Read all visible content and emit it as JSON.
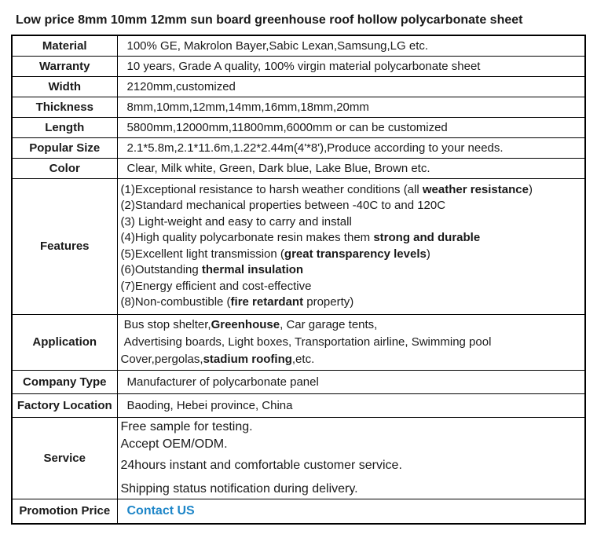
{
  "title": "Low price 8mm 10mm 12mm sun board greenhouse roof hollow polycarbonate sheet",
  "colors": {
    "link": "#1e86c8",
    "border": "#000000",
    "text": "#1a1a1a"
  },
  "table": {
    "rows": [
      {
        "kind": "simple",
        "label": "Material",
        "lines": [
          [
            {
              "t": "100% GE, Makrolon Bayer,Sabic Lexan,Samsung,LG etc."
            }
          ]
        ]
      },
      {
        "kind": "simple",
        "label": "Warranty",
        "lines": [
          [
            {
              "t": "10 years, Grade A quality, 100% virgin material polycarbonate sheet"
            }
          ]
        ]
      },
      {
        "kind": "simple",
        "label": "Width",
        "lines": [
          [
            {
              "t": "2120mm,customized"
            }
          ]
        ]
      },
      {
        "kind": "simple",
        "label": "Thickness",
        "lines": [
          [
            {
              "t": "8mm,10mm,12mm,14mm,16mm,18mm,20mm"
            }
          ]
        ]
      },
      {
        "kind": "simple",
        "label": "Length",
        "lines": [
          [
            {
              "t": "5800mm,12000mm,11800mm,6000mm or can be customized"
            }
          ]
        ]
      },
      {
        "kind": "simple",
        "label": "Popular Size",
        "lines": [
          [
            {
              "t": "2.1*5.8m,2.1*11.6m,1.22*2.44m(4'*8'),Produce according to your needs."
            }
          ]
        ]
      },
      {
        "kind": "simple",
        "label": "Color",
        "lines": [
          [
            {
              "t": "Clear, Milk white, Green, Dark blue, Lake Blue, Brown etc."
            }
          ]
        ]
      },
      {
        "kind": "features",
        "label": "Features",
        "lines": [
          [
            {
              "t": "(1)Exceptional resistance to harsh weather conditions (all "
            },
            {
              "t": "weather resistance",
              "b": true
            },
            {
              "t": ")"
            }
          ],
          [
            {
              "t": "(2)Standard mechanical properties between -40C to and 120C"
            }
          ],
          [
            {
              "t": "(3) Light-weight and easy to carry and install"
            }
          ],
          [
            {
              "t": "(4)High quality polycarbonate resin makes them "
            },
            {
              "t": "strong and durable",
              "b": true
            }
          ],
          [
            {
              "t": "(5)Excellent light transmission ("
            },
            {
              "t": "great transparency levels",
              "b": true
            },
            {
              "t": ")"
            }
          ],
          [
            {
              "t": "(6)Outstanding "
            },
            {
              "t": "thermal insulation",
              "b": true
            }
          ],
          [
            {
              "t": "(7)Energy efficient and cost-effective"
            }
          ],
          [
            {
              "t": "(8)Non-combustible ("
            },
            {
              "t": "fire retardant",
              "b": true
            },
            {
              "t": " property)"
            }
          ]
        ]
      },
      {
        "kind": "application",
        "label": "Application",
        "lines": [
          [
            {
              "t": " Bus stop shelter,"
            },
            {
              "t": "Greenhouse",
              "b": true
            },
            {
              "t": ", Car garage tents,"
            }
          ],
          [
            {
              "t": " Advertising boards, Light boxes, Transportation airline, Swimming pool"
            }
          ],
          [
            {
              "t": "Cover,pergolas,"
            },
            {
              "t": "stadium roofing",
              "b": true
            },
            {
              "t": ",etc."
            }
          ]
        ]
      },
      {
        "kind": "medium",
        "label": "Company Type",
        "lines": [
          [
            {
              "t": "Manufacturer of polycarbonate panel"
            }
          ]
        ]
      },
      {
        "kind": "medium",
        "label": "Factory Location",
        "lines": [
          [
            {
              "t": "Baoding, Hebei province, China"
            }
          ]
        ]
      },
      {
        "kind": "service",
        "label": "Service",
        "lines": [
          [
            {
              "t": "Free sample for testing."
            }
          ],
          [
            {
              "t": "Accept OEM/ODM."
            }
          ],
          [
            {
              "t": "24hours instant and comfortable customer service."
            }
          ],
          [
            {
              "t": "Shipping status notification during delivery."
            }
          ]
        ]
      },
      {
        "kind": "promo",
        "label": "Promotion Price",
        "lines": [
          [
            {
              "t": "Contact US",
              "b": true,
              "link": true
            }
          ]
        ]
      }
    ]
  }
}
